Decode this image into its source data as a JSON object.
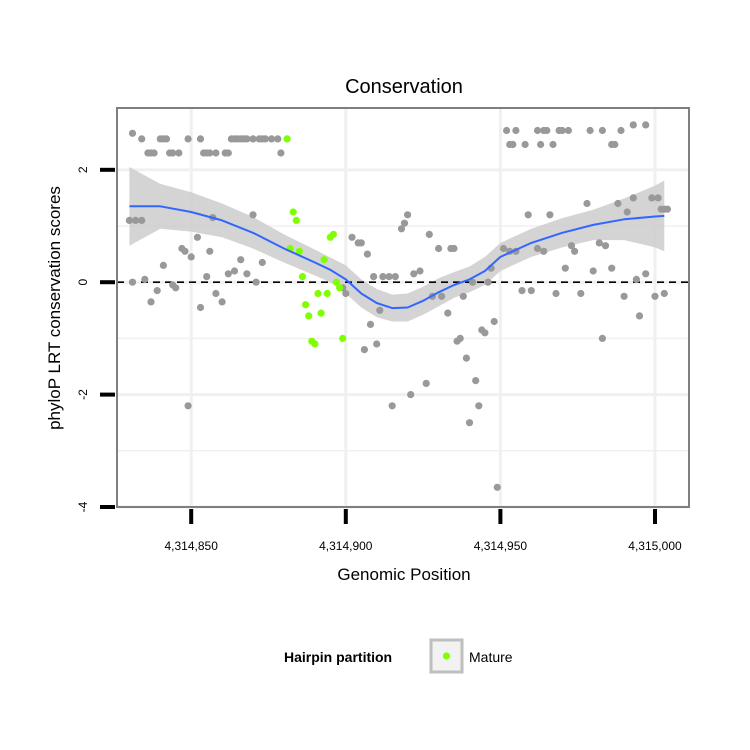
{
  "chart_data": {
    "type": "scatter",
    "title": "Conservation",
    "xlabel": "Genomic Position",
    "ylabel": "phyloP LRT conservation scores",
    "xlim": [
      4314826,
      4315011
    ],
    "ylim": [
      -4,
      3.1
    ],
    "x_ticks": [
      {
        "value": 4314850,
        "label": "4,314,850"
      },
      {
        "value": 4314900,
        "label": "4,314,900"
      },
      {
        "value": 4314950,
        "label": "4,314,950"
      },
      {
        "value": 4315000,
        "label": "4,315,000"
      }
    ],
    "y_ticks": [
      {
        "value": -4,
        "label": "-4"
      },
      {
        "value": -2,
        "label": "-2"
      },
      {
        "value": 0,
        "label": "0"
      },
      {
        "value": 2,
        "label": "2"
      }
    ],
    "reference_line": {
      "y": 0,
      "style": "dashed"
    },
    "legend": {
      "title": "Hairpin partition",
      "entries": [
        {
          "label": "Mature",
          "color": "#7fff00"
        }
      ]
    },
    "colors": {
      "other": "#999999",
      "mature": "#7fff00",
      "smooth": "#3366ff",
      "band": "#cccccc",
      "panel_border": "#7f7f7f",
      "grid": "#f0f0f0"
    },
    "series": [
      {
        "name": "Other",
        "color": "#999999",
        "points": [
          [
            4314831,
            2.65
          ],
          [
            4314834,
            2.55
          ],
          [
            4314836,
            2.3
          ],
          [
            4314837,
            2.3
          ],
          [
            4314838,
            2.3
          ],
          [
            4314840,
            2.55
          ],
          [
            4314841,
            2.55
          ],
          [
            4314842,
            2.55
          ],
          [
            4314843,
            2.3
          ],
          [
            4314844,
            2.3
          ],
          [
            4314846,
            2.3
          ],
          [
            4314849,
            2.55
          ],
          [
            4314853,
            2.55
          ],
          [
            4314854,
            2.3
          ],
          [
            4314855,
            2.3
          ],
          [
            4314856,
            2.3
          ],
          [
            4314858,
            2.3
          ],
          [
            4314861,
            2.3
          ],
          [
            4314862,
            2.3
          ],
          [
            4314863,
            2.55
          ],
          [
            4314864,
            2.55
          ],
          [
            4314865,
            2.55
          ],
          [
            4314866,
            2.55
          ],
          [
            4314867,
            2.55
          ],
          [
            4314868,
            2.55
          ],
          [
            4314870,
            2.55
          ],
          [
            4314872,
            2.55
          ],
          [
            4314873,
            2.55
          ],
          [
            4314874,
            2.55
          ],
          [
            4314876,
            2.55
          ],
          [
            4314878,
            2.55
          ],
          [
            4314879,
            2.3
          ],
          [
            4314830,
            1.1
          ],
          [
            4314832,
            1.1
          ],
          [
            4314834,
            1.1
          ],
          [
            4314831,
            0.0
          ],
          [
            4314835,
            0.05
          ],
          [
            4314837,
            -0.35
          ],
          [
            4314839,
            -0.15
          ],
          [
            4314841,
            0.3
          ],
          [
            4314844,
            -0.05
          ],
          [
            4314845,
            -0.1
          ],
          [
            4314847,
            0.6
          ],
          [
            4314848,
            0.55
          ],
          [
            4314850,
            0.45
          ],
          [
            4314852,
            0.8
          ],
          [
            4314853,
            -0.45
          ],
          [
            4314855,
            0.1
          ],
          [
            4314856,
            0.55
          ],
          [
            4314857,
            1.15
          ],
          [
            4314858,
            -0.2
          ],
          [
            4314860,
            -0.35
          ],
          [
            4314862,
            0.15
          ],
          [
            4314864,
            0.2
          ],
          [
            4314866,
            0.4
          ],
          [
            4314868,
            0.15
          ],
          [
            4314870,
            1.2
          ],
          [
            4314871,
            0.0
          ],
          [
            4314873,
            0.35
          ],
          [
            4314849,
            -2.2
          ],
          [
            4314899,
            -0.1
          ],
          [
            4314900,
            -0.2
          ],
          [
            4314902,
            0.8
          ],
          [
            4314904,
            0.7
          ],
          [
            4314905,
            0.7
          ],
          [
            4314906,
            -1.2
          ],
          [
            4314907,
            0.5
          ],
          [
            4314908,
            -0.75
          ],
          [
            4314909,
            0.1
          ],
          [
            4314910,
            -1.1
          ],
          [
            4314911,
            -0.5
          ],
          [
            4314912,
            0.1
          ],
          [
            4314914,
            0.1
          ],
          [
            4314915,
            -2.2
          ],
          [
            4314916,
            0.1
          ],
          [
            4314918,
            0.95
          ],
          [
            4314919,
            1.05
          ],
          [
            4314920,
            1.2
          ],
          [
            4314921,
            -2.0
          ],
          [
            4314922,
            0.15
          ],
          [
            4314924,
            0.2
          ],
          [
            4314926,
            -1.8
          ],
          [
            4314927,
            0.85
          ],
          [
            4314928,
            -0.25
          ],
          [
            4314930,
            0.6
          ],
          [
            4314931,
            -0.25
          ],
          [
            4314933,
            -0.55
          ],
          [
            4314934,
            0.6
          ],
          [
            4314935,
            0.6
          ],
          [
            4314936,
            -1.05
          ],
          [
            4314937,
            -1.0
          ],
          [
            4314938,
            -0.25
          ],
          [
            4314939,
            -1.35
          ],
          [
            4314940,
            -2.5
          ],
          [
            4314941,
            0.0
          ],
          [
            4314942,
            -1.75
          ],
          [
            4314943,
            -2.2
          ],
          [
            4314944,
            -0.85
          ],
          [
            4314945,
            -0.9
          ],
          [
            4314946,
            0.0
          ],
          [
            4314947,
            0.25
          ],
          [
            4314948,
            -0.7
          ],
          [
            4314949,
            -3.65
          ],
          [
            4314951,
            0.6
          ],
          [
            4314952,
            2.7
          ],
          [
            4314953,
            2.45
          ],
          [
            4314954,
            2.45
          ],
          [
            4314955,
            2.7
          ],
          [
            4314958,
            2.45
          ],
          [
            4314962,
            2.7
          ],
          [
            4314963,
            2.45
          ],
          [
            4314964,
            2.7
          ],
          [
            4314965,
            2.7
          ],
          [
            4314967,
            2.45
          ],
          [
            4314969,
            2.7
          ],
          [
            4314970,
            2.7
          ],
          [
            4314972,
            2.7
          ],
          [
            4314979,
            2.7
          ],
          [
            4314983,
            2.7
          ],
          [
            4314986,
            2.45
          ],
          [
            4314987,
            2.45
          ],
          [
            4314989,
            2.7
          ],
          [
            4314993,
            2.8
          ],
          [
            4314997,
            2.8
          ],
          [
            4314953,
            0.55
          ],
          [
            4314955,
            0.55
          ],
          [
            4314957,
            -0.15
          ],
          [
            4314959,
            1.2
          ],
          [
            4314960,
            -0.15
          ],
          [
            4314962,
            0.6
          ],
          [
            4314964,
            0.55
          ],
          [
            4314966,
            1.2
          ],
          [
            4314968,
            -0.2
          ],
          [
            4314971,
            0.25
          ],
          [
            4314973,
            0.65
          ],
          [
            4314974,
            0.55
          ],
          [
            4314976,
            -0.2
          ],
          [
            4314978,
            1.4
          ],
          [
            4314980,
            0.2
          ],
          [
            4314982,
            0.7
          ],
          [
            4314983,
            -1.0
          ],
          [
            4314984,
            0.65
          ],
          [
            4314986,
            0.25
          ],
          [
            4314988,
            1.4
          ],
          [
            4314990,
            -0.25
          ],
          [
            4314991,
            1.25
          ],
          [
            4314993,
            1.5
          ],
          [
            4314994,
            0.05
          ],
          [
            4314995,
            -0.6
          ],
          [
            4314997,
            0.15
          ],
          [
            4314999,
            1.5
          ],
          [
            4315000,
            -0.25
          ],
          [
            4315001,
            1.5
          ],
          [
            4315002,
            1.3
          ],
          [
            4315003,
            -0.2
          ],
          [
            4315003,
            1.3
          ],
          [
            4315004,
            1.3
          ]
        ]
      },
      {
        "name": "Mature",
        "color": "#7fff00",
        "points": [
          [
            4314881,
            2.55
          ],
          [
            4314883,
            1.25
          ],
          [
            4314884,
            1.1
          ],
          [
            4314882,
            0.6
          ],
          [
            4314885,
            0.55
          ],
          [
            4314886,
            0.1
          ],
          [
            4314887,
            -0.4
          ],
          [
            4314888,
            -0.6
          ],
          [
            4314889,
            -1.05
          ],
          [
            4314890,
            -1.1
          ],
          [
            4314891,
            -0.2
          ],
          [
            4314892,
            -0.55
          ],
          [
            4314893,
            0.4
          ],
          [
            4314894,
            -0.2
          ],
          [
            4314895,
            0.8
          ],
          [
            4314896,
            0.85
          ],
          [
            4314897,
            0.0
          ],
          [
            4314898,
            -0.1
          ],
          [
            4314899,
            -1.0
          ]
        ]
      }
    ],
    "smooth_fit": {
      "x": [
        4314830,
        4314840,
        4314850,
        4314860,
        4314870,
        4314880,
        4314890,
        4314895,
        4314900,
        4314905,
        4314910,
        4314915,
        4314920,
        4314925,
        4314930,
        4314935,
        4314940,
        4314945,
        4314950,
        4314960,
        4314970,
        4314980,
        4314990,
        4315000,
        4315003
      ],
      "y": [
        1.35,
        1.35,
        1.25,
        1.1,
        0.88,
        0.6,
        0.35,
        0.22,
        0.05,
        -0.2,
        -0.37,
        -0.46,
        -0.45,
        -0.33,
        -0.18,
        -0.05,
        0.05,
        0.2,
        0.45,
        0.7,
        0.88,
        1.02,
        1.12,
        1.17,
        1.18
      ],
      "lower": [
        0.65,
        0.95,
        0.9,
        0.8,
        0.6,
        0.35,
        0.12,
        0.0,
        -0.2,
        -0.45,
        -0.62,
        -0.7,
        -0.7,
        -0.58,
        -0.43,
        -0.28,
        -0.18,
        -0.05,
        0.2,
        0.45,
        0.62,
        0.75,
        0.75,
        0.62,
        0.55
      ],
      "upper": [
        2.05,
        1.75,
        1.6,
        1.4,
        1.16,
        0.85,
        0.58,
        0.44,
        0.3,
        0.05,
        -0.12,
        -0.22,
        -0.2,
        -0.08,
        0.07,
        0.18,
        0.28,
        0.45,
        0.7,
        0.95,
        1.14,
        1.29,
        1.49,
        1.72,
        1.81
      ]
    }
  }
}
